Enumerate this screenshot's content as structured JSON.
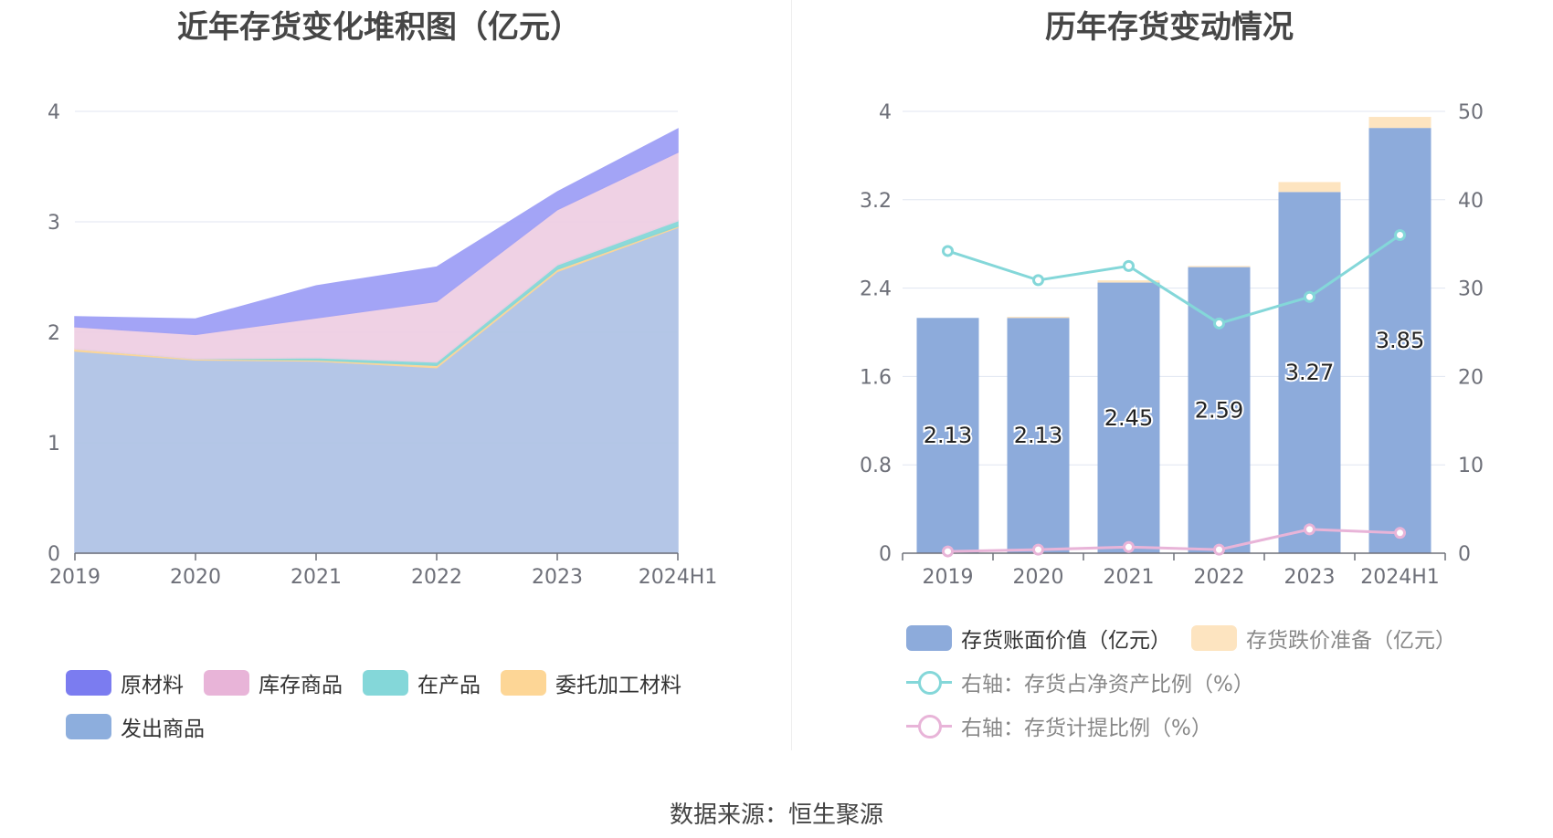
{
  "charts": {
    "left_title": "近年存货变化堆积图（亿元）",
    "right_title": "历年存货变动情况"
  },
  "left_legend": [
    {
      "label": "原材料",
      "color": "#7b7cf0"
    },
    {
      "label": "库存商品",
      "color": "#e8b4d8"
    },
    {
      "label": "在产品",
      "color": "#84d7d9"
    },
    {
      "label": "委托加工材料",
      "color": "#fdd696"
    },
    {
      "label": "发出商品",
      "color": "#8daedd"
    }
  ],
  "right_legend": [
    {
      "label": "存货账面价值（亿元）",
      "color": "#8dabdb",
      "kind": "bar"
    },
    {
      "label": "存货跌价准备（亿元）",
      "color": "#fde4c0",
      "kind": "bar"
    },
    {
      "label": "右轴：存货占净资产比例（%）",
      "color": "#84d7d9",
      "kind": "line"
    },
    {
      "label": "右轴：存货计提比例（%）",
      "color": "#e8b4d8",
      "kind": "line"
    }
  ],
  "footer": "数据来源：恒生聚源",
  "chart_data": [
    {
      "type": "area",
      "title": "近年存货变化堆积图（亿元）",
      "categories": [
        "2019",
        "2020",
        "2021",
        "2022",
        "2023",
        "2024H1"
      ],
      "ylim": [
        0,
        4
      ],
      "yticks": [
        0,
        1,
        2,
        3,
        4
      ],
      "stacked": true,
      "series": [
        {
          "name": "发出商品",
          "color": "#b0c4e6",
          "values": [
            1.83,
            1.75,
            1.74,
            1.68,
            2.55,
            2.95
          ]
        },
        {
          "name": "委托加工材料",
          "color": "#fdd696",
          "values": [
            0.02,
            0.01,
            0.01,
            0.02,
            0.02,
            0.01
          ]
        },
        {
          "name": "在产品",
          "color": "#84d7d9",
          "values": [
            0.0,
            0.0,
            0.02,
            0.03,
            0.04,
            0.05
          ]
        },
        {
          "name": "库存商品",
          "color": "#efcfe3",
          "values": [
            0.2,
            0.22,
            0.36,
            0.55,
            0.5,
            0.62
          ]
        },
        {
          "name": "原材料",
          "color": "#9fa0f6",
          "values": [
            0.09,
            0.14,
            0.29,
            0.31,
            0.16,
            0.21
          ]
        }
      ],
      "grid": true,
      "legend_position": "bottom"
    },
    {
      "type": "bar",
      "title": "历年存货变动情况",
      "categories": [
        "2019",
        "2020",
        "2021",
        "2022",
        "2023",
        "2024H1"
      ],
      "ylim": [
        0,
        4
      ],
      "yticks": [
        "0",
        "0.8",
        "1.6",
        "2.4",
        "3.2",
        "4"
      ],
      "y2lim": [
        0,
        50
      ],
      "y2ticks": [
        "0",
        "10",
        "20",
        "30",
        "40",
        "50"
      ],
      "series": [
        {
          "name": "存货账面价值（亿元）",
          "color": "#8dabdb",
          "values": [
            2.13,
            2.13,
            2.45,
            2.59,
            3.27,
            3.85
          ],
          "labels": [
            "2.13",
            "2.13",
            "2.45",
            "2.59",
            "3.27",
            "3.85"
          ]
        },
        {
          "name": "存货跌价准备（亿元）",
          "color": "#fde4c0",
          "values": [
            0.0,
            0.01,
            0.02,
            0.01,
            0.09,
            0.1
          ]
        },
        {
          "name": "右轴：存货占净资产比例（%）",
          "color": "#84d7d9",
          "axis": "right",
          "values": [
            34.2,
            30.9,
            32.5,
            26.0,
            29.0,
            36.0
          ]
        },
        {
          "name": "右轴：存货计提比例（%）",
          "color": "#e8b4d8",
          "axis": "right",
          "values": [
            0.2,
            0.4,
            0.7,
            0.4,
            2.7,
            2.3
          ]
        }
      ],
      "grid": true,
      "legend_position": "bottom"
    }
  ]
}
